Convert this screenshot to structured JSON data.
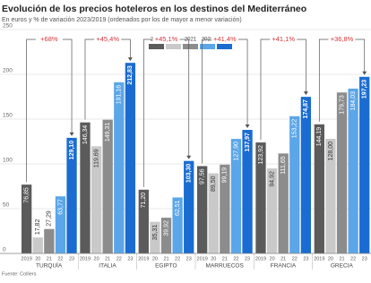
{
  "chart_data": {
    "type": "bar",
    "title": "Evolución de los precios hoteleros en los destinos del Mediterráneo",
    "subtitle": "En euros y % de variación 2023/2019 (ordenados por los de mayor a menor variación)",
    "source": "Fuente: Colliers",
    "categories": [
      "TURQUÍA",
      "ITALIA",
      "EGIPTO",
      "MARRUECOS",
      "FRANCIA",
      "GRECIA"
    ],
    "x_sublabels": [
      "2019",
      "20",
      "21",
      "22",
      "23"
    ],
    "annotations": [
      "+68%",
      "+45,4%",
      "+45,1%",
      "+41,4%",
      "+41,1%",
      "+36,8%"
    ],
    "series": [
      {
        "name": "2019",
        "color": "#5b5b5b",
        "values": [
          76.85,
          146.34,
          71.2,
          97.56,
          123.92,
          144.19
        ],
        "value_labels": [
          "76,85",
          "146,34",
          "71,20",
          "97,56",
          "123,92",
          "144,19"
        ]
      },
      {
        "name": "2020",
        "color": "#c9c9c9",
        "values": [
          17.82,
          119.69,
          35.31,
          89.5,
          94.92,
          128.0
        ],
        "value_labels": [
          "17,82",
          "119,69",
          "35,31",
          "89,50",
          "94,92",
          "128,00"
        ]
      },
      {
        "name": "2021",
        "color": "#8c8c8c",
        "values": [
          27.29,
          149.31,
          39.92,
          99.19,
          111.65,
          179.73
        ],
        "value_labels": [
          "27,29",
          "149,31",
          "39,92",
          "99,19",
          "111,65",
          "179,73"
        ]
      },
      {
        "name": "2022",
        "color": "#5ba6e8",
        "values": [
          63.77,
          191.16,
          62.51,
          127.9,
          153.22,
          184.03
        ],
        "value_labels": [
          "63,77",
          "191,16",
          "62,51",
          "127,90",
          "153,22",
          "184,03"
        ]
      },
      {
        "name": "2023",
        "color": "#1a6cd0",
        "values": [
          129.1,
          212.83,
          103.3,
          137.97,
          174.87,
          197.23
        ],
        "value_labels": [
          "129,10",
          "212,83",
          "103,30",
          "137,97",
          "174,87",
          "197,23"
        ]
      }
    ],
    "ylim": [
      0,
      250
    ],
    "yticks": [
      0,
      50,
      100,
      150,
      200,
      250
    ],
    "grid": true
  }
}
